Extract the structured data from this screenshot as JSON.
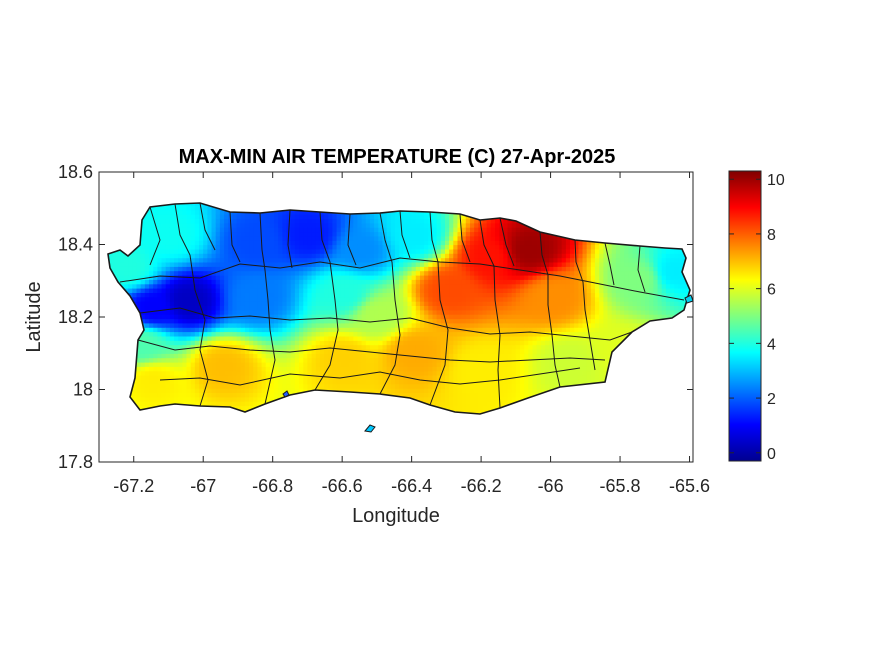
{
  "chart_data": {
    "type": "heatmap",
    "title": "MAX-MIN AIR TEMPERATURE (C) 27-Apr-2025",
    "xlabel": "Longitude",
    "ylabel": "Latitude",
    "xlim": [
      -67.3,
      -65.59
    ],
    "ylim": [
      17.8,
      18.6
    ],
    "x_ticks": [
      -67.2,
      -67,
      -66.8,
      -66.6,
      -66.4,
      -66.2,
      -66,
      -65.8,
      -65.6
    ],
    "x_tick_labels": [
      "-67.2",
      "-67",
      "-66.8",
      "-66.6",
      "-66.4",
      "-66.2",
      "-66",
      "-65.8",
      "-65.6"
    ],
    "y_ticks": [
      17.8,
      18,
      18.2,
      18.4,
      18.6
    ],
    "y_tick_labels": [
      "17.8",
      "18",
      "18.2",
      "18.4",
      "18.6"
    ],
    "colorbar": {
      "colormap": "jet",
      "range": [
        -0.3,
        10.3
      ],
      "ticks": [
        0,
        2,
        4,
        6,
        8,
        10
      ],
      "tick_labels": [
        "0",
        "2",
        "4",
        "6",
        "8",
        "10"
      ]
    },
    "grid": false,
    "field_centers": [
      {
        "lon": -66.07,
        "lat": 18.38,
        "value": 10.0
      },
      {
        "lon": -66.18,
        "lat": 18.36,
        "value": 8.8
      },
      {
        "lon": -66.3,
        "lat": 18.27,
        "value": 8.2
      },
      {
        "lon": -66.0,
        "lat": 18.25,
        "value": 7.5
      },
      {
        "lon": -66.4,
        "lat": 18.1,
        "value": 7.2
      },
      {
        "lon": -66.6,
        "lat": 18.08,
        "value": 6.8
      },
      {
        "lon": -66.95,
        "lat": 18.06,
        "value": 7.0
      },
      {
        "lon": -67.15,
        "lat": 18.02,
        "value": 6.5
      },
      {
        "lon": -66.2,
        "lat": 18.05,
        "value": 6.5
      },
      {
        "lon": -65.95,
        "lat": 18.07,
        "value": 5.8
      },
      {
        "lon": -65.8,
        "lat": 18.1,
        "value": 6.0
      },
      {
        "lon": -65.75,
        "lat": 18.3,
        "value": 5.0
      },
      {
        "lon": -65.65,
        "lat": 18.32,
        "value": 3.5
      },
      {
        "lon": -66.7,
        "lat": 18.42,
        "value": 1.3
      },
      {
        "lon": -66.85,
        "lat": 18.4,
        "value": 1.8
      },
      {
        "lon": -66.55,
        "lat": 18.38,
        "value": 2.5
      },
      {
        "lon": -67.05,
        "lat": 18.24,
        "value": 0.4
      },
      {
        "lon": -67.15,
        "lat": 18.22,
        "value": 1.0
      },
      {
        "lon": -66.85,
        "lat": 18.25,
        "value": 2.3
      },
      {
        "lon": -66.6,
        "lat": 18.26,
        "value": 4.0
      },
      {
        "lon": -67.1,
        "lat": 18.42,
        "value": 3.8
      },
      {
        "lon": -67.22,
        "lat": 18.33,
        "value": 4.0
      },
      {
        "lon": -66.4,
        "lat": 18.42,
        "value": 3.5
      },
      {
        "lon": -67.18,
        "lat": 18.12,
        "value": 4.5
      },
      {
        "lon": -66.5,
        "lat": 18.2,
        "value": 5.5
      }
    ],
    "field_base_value": 4.5
  }
}
